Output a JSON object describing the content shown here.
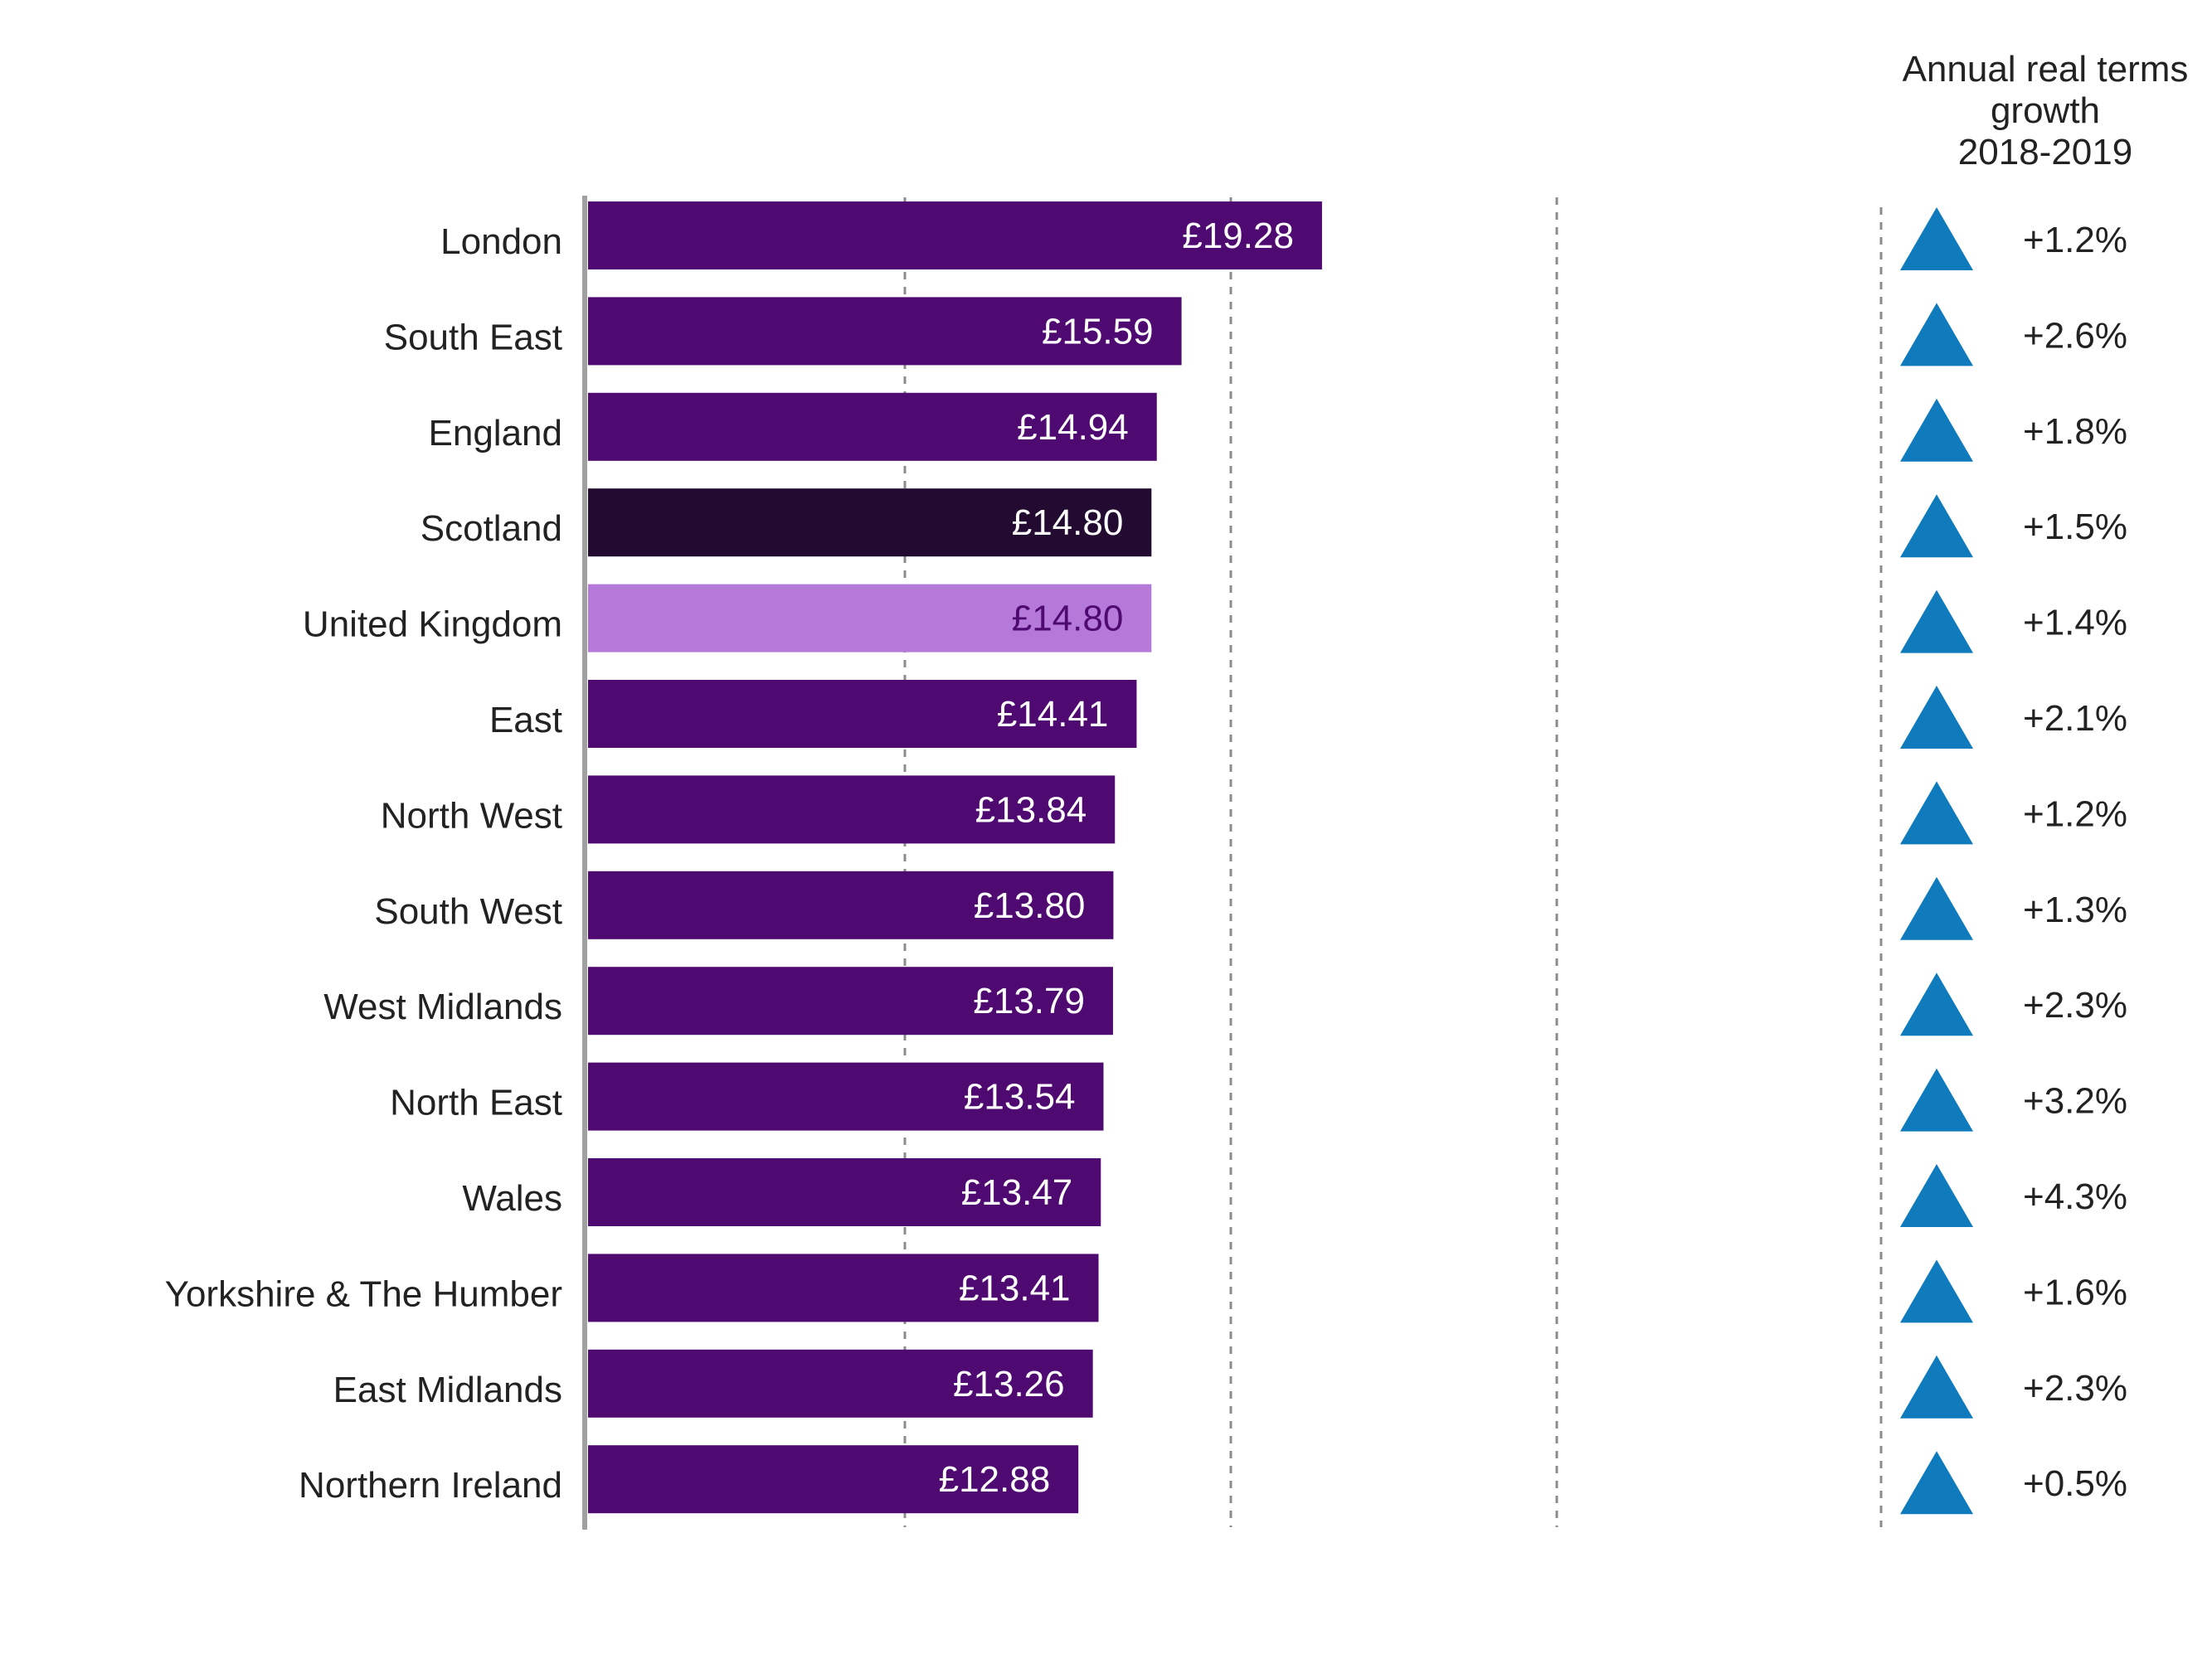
{
  "chart_data": {
    "type": "bar",
    "orientation": "horizontal",
    "title": "",
    "xlabel": "",
    "ylabel": "",
    "grid": true,
    "categories": [
      "London",
      "South East",
      "England",
      "Scotland",
      "United Kingdom",
      "East",
      "North West",
      "South West",
      "West Midlands",
      "North East",
      "Wales",
      "Yorkshire & The Humber",
      "East Midlands",
      "Northern Ireland"
    ],
    "values": [
      19.28,
      15.59,
      14.94,
      14.8,
      14.8,
      14.41,
      13.84,
      13.8,
      13.79,
      13.54,
      13.47,
      13.41,
      13.26,
      12.88
    ],
    "value_labels": [
      "£19.28",
      "£15.59",
      "£14.94",
      "£14.80",
      "£14.80",
      "£14.41",
      "£13.84",
      "£13.80",
      "£13.79",
      "£13.54",
      "£13.47",
      "£13.41",
      "£13.26",
      "£12.88"
    ],
    "growth_column": {
      "title_lines": [
        "Annual real terms",
        "growth",
        "2018-2019"
      ],
      "values": [
        1.2,
        2.6,
        1.8,
        1.5,
        1.4,
        2.1,
        1.2,
        1.3,
        2.3,
        3.2,
        4.3,
        1.6,
        2.3,
        0.5
      ],
      "labels": [
        "+1.2%",
        "+2.6%",
        "+1.8%",
        "+1.5%",
        "+1.4%",
        "+2.1%",
        "+1.2%",
        "+1.3%",
        "+2.3%",
        "+3.2%",
        "+4.3%",
        "+1.6%",
        "+2.3%",
        "+0.5%"
      ],
      "icon": "up-triangle-icon"
    }
  },
  "colors": {
    "bar_default": "#4f0a72",
    "bar_scotland": "#230a30",
    "bar_uk": "#b57ad9",
    "label_default": "#ffffff",
    "label_uk": "#4f0a72",
    "triangle": "#0f7bbd",
    "gridline": "#8c8c8c",
    "axis": "#a0a0a0"
  }
}
